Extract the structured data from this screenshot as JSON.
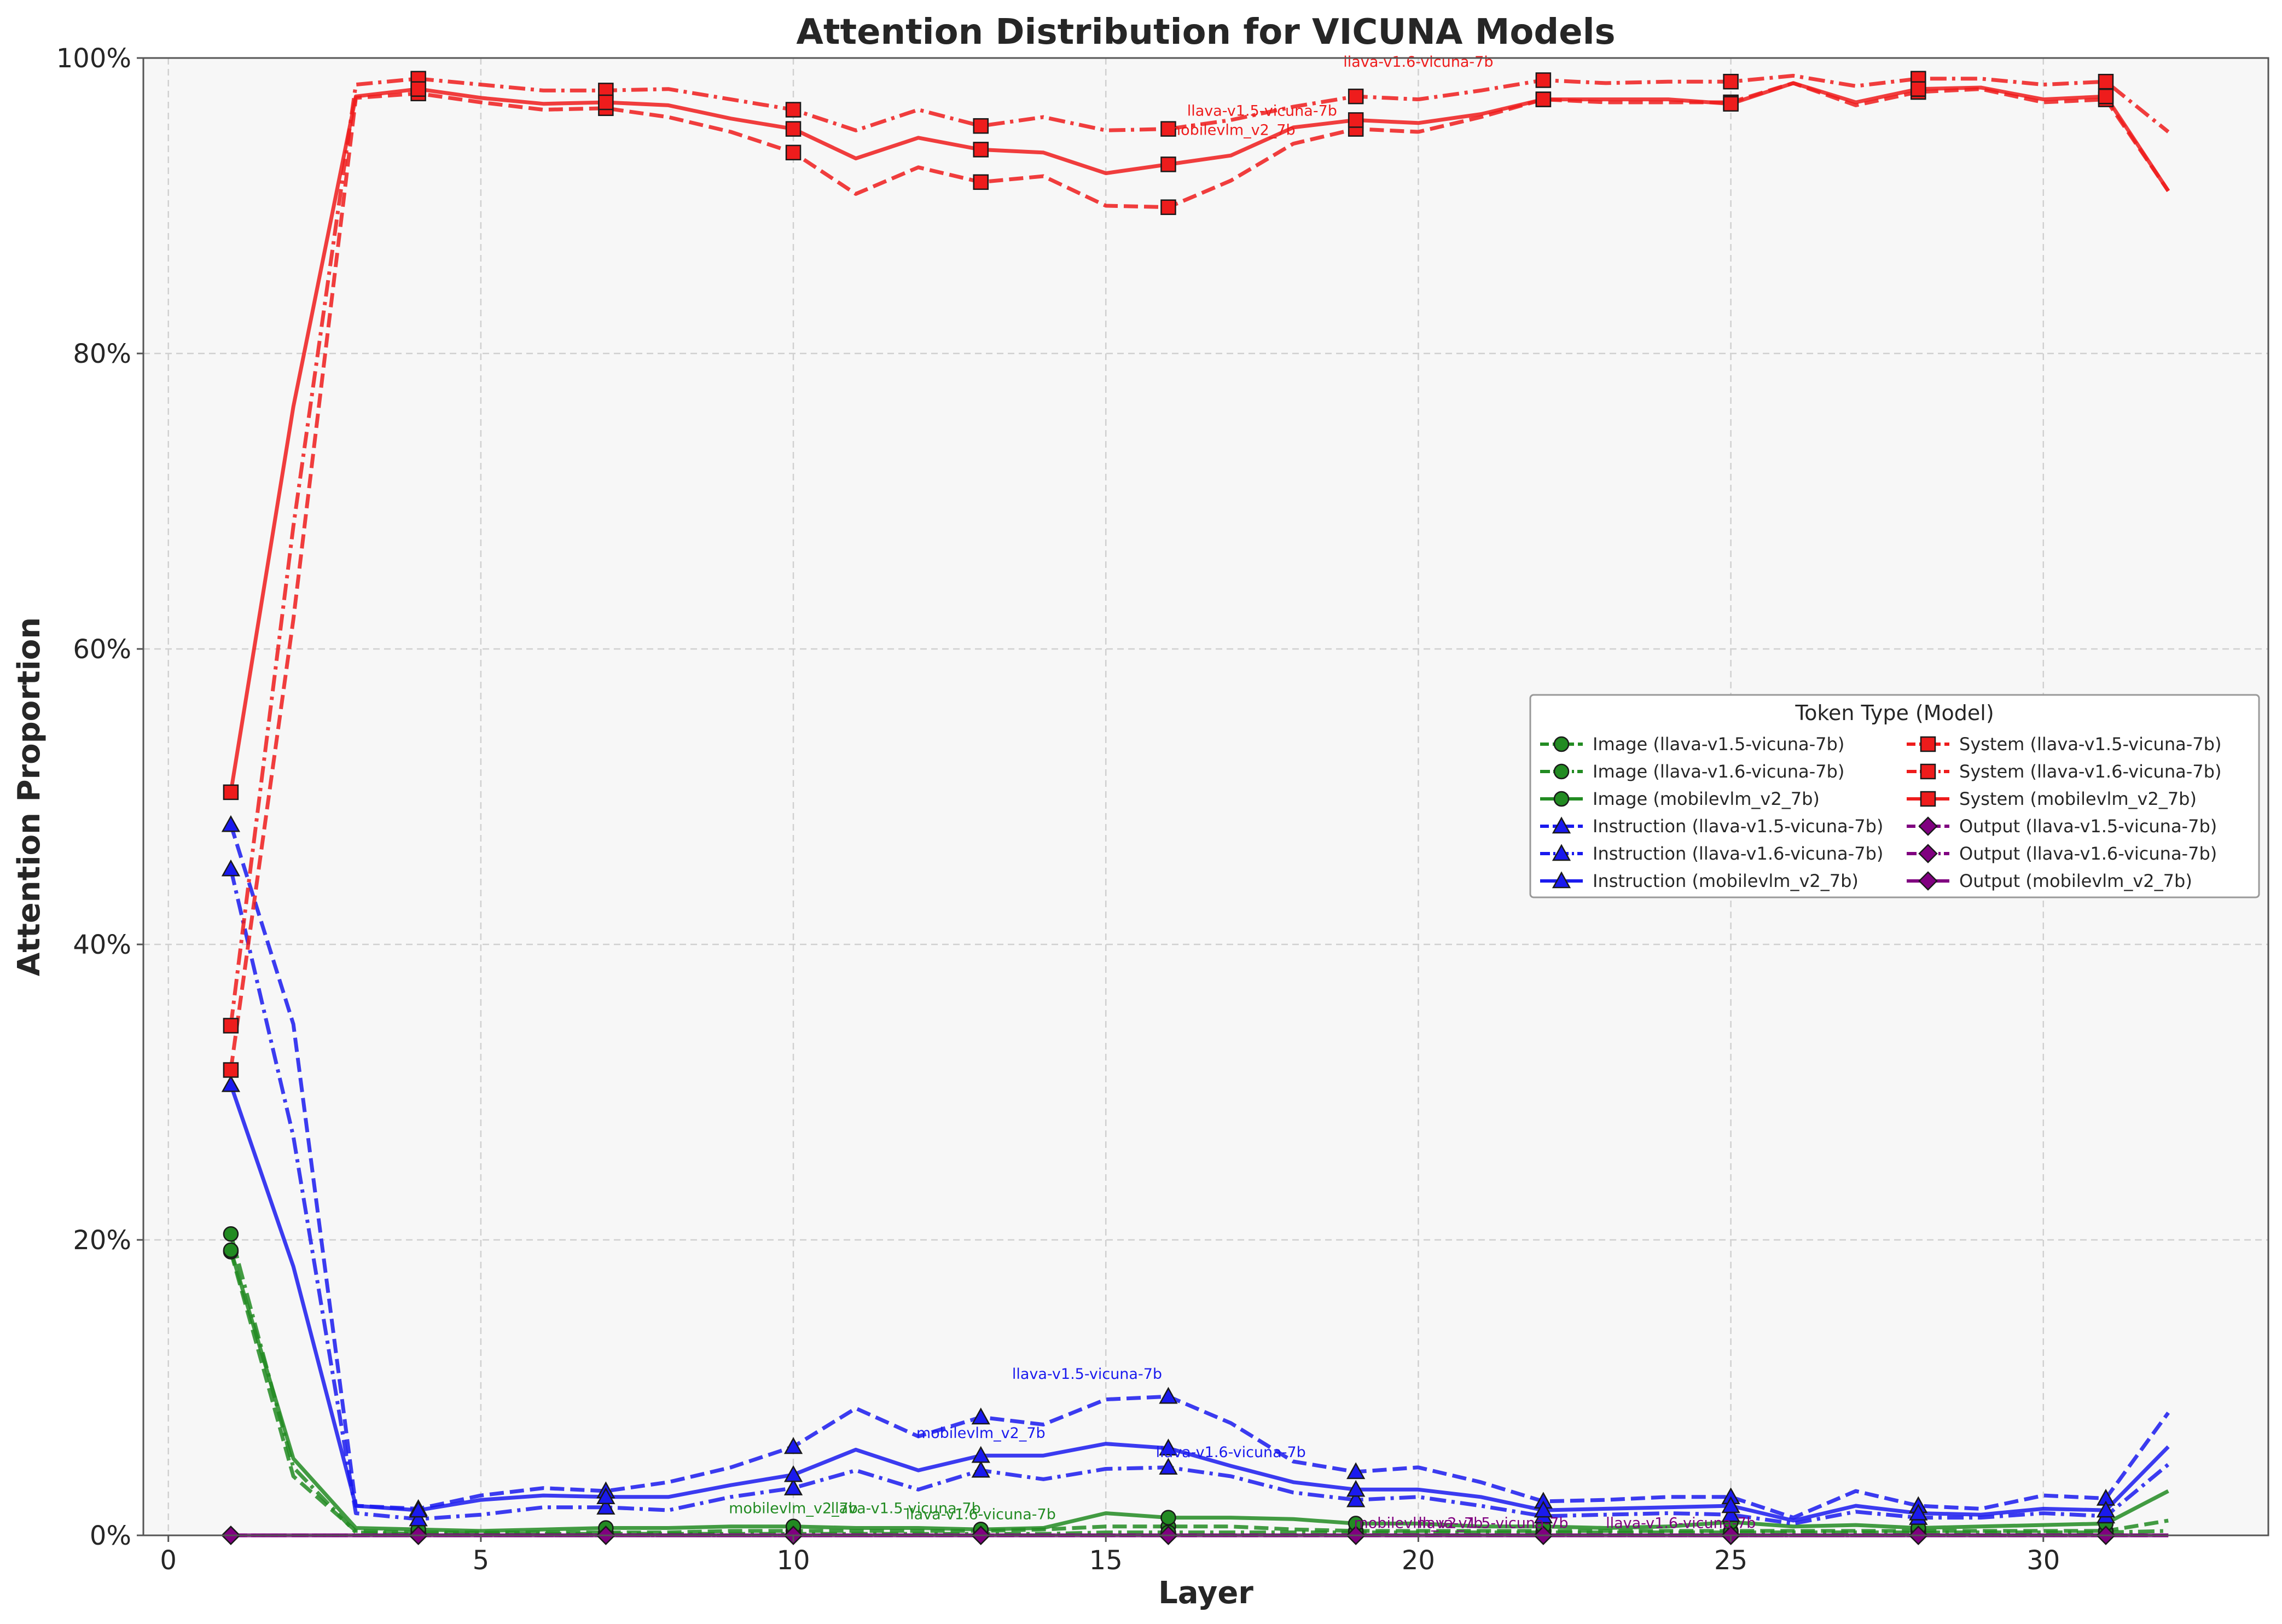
{
  "chart_data": {
    "type": "line",
    "title": "Attention Distribution for VICUNA Models",
    "xlabel": "Layer",
    "ylabel": "Attention Proportion",
    "xlim": [
      -0.4,
      33.6
    ],
    "ylim": [
      0,
      100
    ],
    "x_ticks": [
      0,
      5,
      10,
      15,
      20,
      25,
      30
    ],
    "y_ticks": [
      0,
      20,
      40,
      60,
      80,
      100
    ],
    "x_tick_labels": [
      "0",
      "5",
      "10",
      "15",
      "20",
      "25",
      "30"
    ],
    "y_tick_labels": [
      "0%",
      "20%",
      "40%",
      "60%",
      "80%",
      "100%"
    ],
    "grid": true,
    "legend": {
      "title": "Token Type (Model)",
      "placement": "center-right",
      "columns": 2
    },
    "colors": {
      "Image": "#228b22",
      "Instruction": "#1a1aee",
      "System": "#ee1c1c",
      "Output": "#800080"
    },
    "x": [
      1,
      2,
      3,
      4,
      5,
      6,
      7,
      8,
      9,
      10,
      11,
      12,
      13,
      14,
      15,
      16,
      17,
      18,
      19,
      20,
      21,
      22,
      23,
      24,
      25,
      26,
      27,
      28,
      29,
      30,
      31,
      32
    ],
    "series": [
      {
        "name": "Image (llava-v1.5-vicuna-7b)",
        "token": "Image",
        "model": "llava-v1.5-vicuna-7b",
        "dash": "dashed",
        "marker": "circle",
        "values": [
          19.2,
          4.0,
          0.3,
          0.2,
          0.2,
          0.2,
          0.2,
          0.2,
          0.3,
          0.3,
          0.3,
          0.3,
          0.3,
          0.4,
          0.6,
          0.6,
          0.6,
          0.4,
          0.3,
          0.3,
          0.3,
          0.3,
          0.3,
          0.3,
          0.3,
          0.3,
          0.3,
          0.3,
          0.3,
          0.3,
          0.3,
          1.0
        ]
      },
      {
        "name": "Image (llava-v1.6-vicuna-7b)",
        "token": "Image",
        "model": "llava-v1.6-vicuna-7b",
        "dash": "dashdot",
        "marker": "circle",
        "values": [
          20.4,
          4.6,
          0.2,
          0.1,
          0.1,
          0.1,
          0.1,
          0.1,
          0.1,
          0.1,
          0.1,
          0.1,
          0.1,
          0.1,
          0.2,
          0.2,
          0.2,
          0.2,
          0.2,
          0.2,
          0.2,
          0.2,
          0.2,
          0.2,
          0.2,
          0.2,
          0.2,
          0.2,
          0.2,
          0.2,
          0.2,
          0.3
        ]
      },
      {
        "name": "Image (mobilevlm_v2_7b)",
        "token": "Image",
        "model": "mobilevlm_v2_7b",
        "dash": "solid",
        "marker": "circle",
        "values": [
          19.3,
          5.2,
          0.5,
          0.4,
          0.3,
          0.4,
          0.5,
          0.5,
          0.6,
          0.6,
          0.5,
          0.5,
          0.4,
          0.5,
          1.5,
          1.2,
          1.2,
          1.1,
          0.8,
          0.8,
          0.6,
          0.6,
          0.5,
          0.6,
          0.9,
          0.6,
          0.7,
          0.5,
          0.6,
          0.7,
          0.8,
          3.0
        ]
      },
      {
        "name": "Instruction (llava-v1.5-vicuna-7b)",
        "token": "Instruction",
        "model": "llava-v1.5-vicuna-7b",
        "dash": "dashed",
        "marker": "triangle",
        "values": [
          48.1,
          34.6,
          2.0,
          1.8,
          2.7,
          3.2,
          3.0,
          3.6,
          4.6,
          6.0,
          8.6,
          6.7,
          8.0,
          7.5,
          9.2,
          9.4,
          7.6,
          5.0,
          4.3,
          4.6,
          3.6,
          2.3,
          2.4,
          2.6,
          2.6,
          1.2,
          3.0,
          2.0,
          1.8,
          2.7,
          2.5,
          8.3
        ]
      },
      {
        "name": "Instruction (llava-v1.6-vicuna-7b)",
        "token": "Instruction",
        "model": "llava-v1.6-vicuna-7b",
        "dash": "dashdot",
        "marker": "triangle",
        "values": [
          45.1,
          27.0,
          1.5,
          1.1,
          1.4,
          1.9,
          1.9,
          1.7,
          2.6,
          3.2,
          4.4,
          3.1,
          4.4,
          3.8,
          4.5,
          4.6,
          4.0,
          2.9,
          2.4,
          2.6,
          2.0,
          1.3,
          1.4,
          1.5,
          1.4,
          0.8,
          1.6,
          1.2,
          1.2,
          1.5,
          1.3,
          4.8
        ]
      },
      {
        "name": "Instruction (mobilevlm_v2_7b)",
        "token": "Instruction",
        "model": "mobilevlm_v2_7b",
        "dash": "solid",
        "marker": "triangle",
        "values": [
          30.5,
          18.2,
          2.0,
          1.7,
          2.4,
          2.7,
          2.6,
          2.6,
          3.4,
          4.1,
          5.8,
          4.4,
          5.4,
          5.4,
          6.2,
          5.9,
          4.7,
          3.6,
          3.1,
          3.1,
          2.6,
          1.7,
          1.8,
          1.9,
          2.0,
          1.0,
          2.0,
          1.5,
          1.4,
          1.8,
          1.7,
          6.0
        ]
      },
      {
        "name": "System (llava-v1.5-vicuna-7b)",
        "token": "System",
        "model": "llava-v1.5-vicuna-7b",
        "dash": "dashed",
        "marker": "square",
        "values": [
          31.5,
          62.0,
          97.3,
          97.6,
          97.0,
          96.5,
          96.6,
          96.0,
          95.0,
          93.6,
          90.8,
          92.6,
          91.6,
          92.0,
          90.0,
          89.9,
          91.7,
          94.2,
          95.2,
          95.0,
          96.0,
          97.2,
          97.0,
          97.0,
          97.0,
          98.3,
          96.8,
          97.7,
          97.9,
          97.0,
          97.2,
          91.0
        ]
      },
      {
        "name": "System (llava-v1.6-vicuna-7b)",
        "token": "System",
        "model": "llava-v1.6-vicuna-7b",
        "dash": "dashdot",
        "marker": "square",
        "values": [
          34.5,
          68.3,
          98.2,
          98.6,
          98.2,
          97.8,
          97.8,
          97.9,
          97.2,
          96.5,
          95.1,
          96.5,
          95.4,
          96.0,
          95.1,
          95.2,
          95.8,
          96.7,
          97.4,
          97.2,
          97.8,
          98.5,
          98.3,
          98.4,
          98.4,
          98.8,
          98.1,
          98.6,
          98.6,
          98.2,
          98.4,
          95.0
        ]
      },
      {
        "name": "System (mobilevlm_v2_7b)",
        "token": "System",
        "model": "mobilevlm_v2_7b",
        "dash": "solid",
        "marker": "square",
        "values": [
          50.3,
          76.4,
          97.4,
          97.9,
          97.3,
          96.9,
          97.0,
          96.8,
          95.9,
          95.2,
          93.2,
          94.6,
          93.8,
          93.6,
          92.2,
          92.8,
          93.4,
          95.3,
          95.8,
          95.6,
          96.2,
          97.2,
          97.2,
          97.2,
          96.9,
          98.3,
          97.0,
          97.9,
          98.0,
          97.2,
          97.4,
          91.0
        ]
      },
      {
        "name": "Output (llava-v1.5-vicuna-7b)",
        "token": "Output",
        "model": "llava-v1.5-vicuna-7b",
        "dash": "dashed",
        "marker": "diamond",
        "values": [
          0,
          0,
          0,
          0,
          0,
          0,
          0,
          0,
          0,
          0,
          0,
          0,
          0,
          0,
          0,
          0,
          0,
          0,
          0,
          0,
          0,
          0,
          0,
          0,
          0,
          0,
          0,
          0,
          0,
          0,
          0,
          0
        ]
      },
      {
        "name": "Output (llava-v1.6-vicuna-7b)",
        "token": "Output",
        "model": "llava-v1.6-vicuna-7b",
        "dash": "dashdot",
        "marker": "diamond",
        "values": [
          0,
          0,
          0,
          0,
          0,
          0,
          0,
          0,
          0,
          0,
          0,
          0,
          0,
          0,
          0,
          0,
          0,
          0,
          0,
          0,
          0,
          0,
          0,
          0,
          0,
          0,
          0,
          0,
          0,
          0,
          0,
          0
        ]
      },
      {
        "name": "Output (mobilevlm_v2_7b)",
        "token": "Output",
        "model": "mobilevlm_v2_7b",
        "dash": "solid",
        "marker": "diamond",
        "values": [
          0,
          0,
          0,
          0,
          0,
          0,
          0,
          0,
          0,
          0,
          0,
          0,
          0,
          0,
          0,
          0,
          0,
          0,
          0,
          0,
          0,
          0,
          0,
          0,
          0,
          0,
          0,
          0,
          0,
          0,
          0,
          0
        ]
      }
    ],
    "marker_layers": [
      1,
      4,
      7,
      10,
      13,
      16,
      19,
      22,
      25,
      28,
      31
    ],
    "annotations": [
      {
        "text": "llava-v1.6-vicuna-7b",
        "x": 20,
        "y": 99.4,
        "color": "#ee1c1c"
      },
      {
        "text": "llava-v1.5-vicuna-7b",
        "x": 17.5,
        "y": 96.1,
        "color": "#ee1c1c"
      },
      {
        "text": "mobilevlm_v2_7b",
        "x": 17,
        "y": 94.8,
        "color": "#ee1c1c"
      },
      {
        "text": "llava-v1.5-vicuna-7b",
        "x": 14.7,
        "y": 10.6,
        "color": "#1a1aee"
      },
      {
        "text": "mobilevlm_v2_7b",
        "x": 13,
        "y": 6.6,
        "color": "#1a1aee"
      },
      {
        "text": "llava-v1.6-vicuna-7b",
        "x": 17,
        "y": 5.3,
        "color": "#1a1aee"
      },
      {
        "text": "mobilevlm_v2_7b",
        "x": 10,
        "y": 1.5,
        "color": "#228b22"
      },
      {
        "text": "llava-v1.5-vicuna-7b",
        "x": 11.8,
        "y": 1.5,
        "color": "#228b22"
      },
      {
        "text": "llava-v1.6-vicuna-7b",
        "x": 13,
        "y": 1.1,
        "color": "#228b22"
      },
      {
        "text": "mobilevlm_v2_7b",
        "x": 20,
        "y": 0.5,
        "color": "#800080"
      },
      {
        "text": "llava-v1.5-vicuna-7b",
        "x": 21.2,
        "y": 0.5,
        "color": "#800080"
      },
      {
        "text": "llava-v1.6-vicuna-7b",
        "x": 24.2,
        "y": 0.5,
        "color": "#800080"
      }
    ]
  }
}
